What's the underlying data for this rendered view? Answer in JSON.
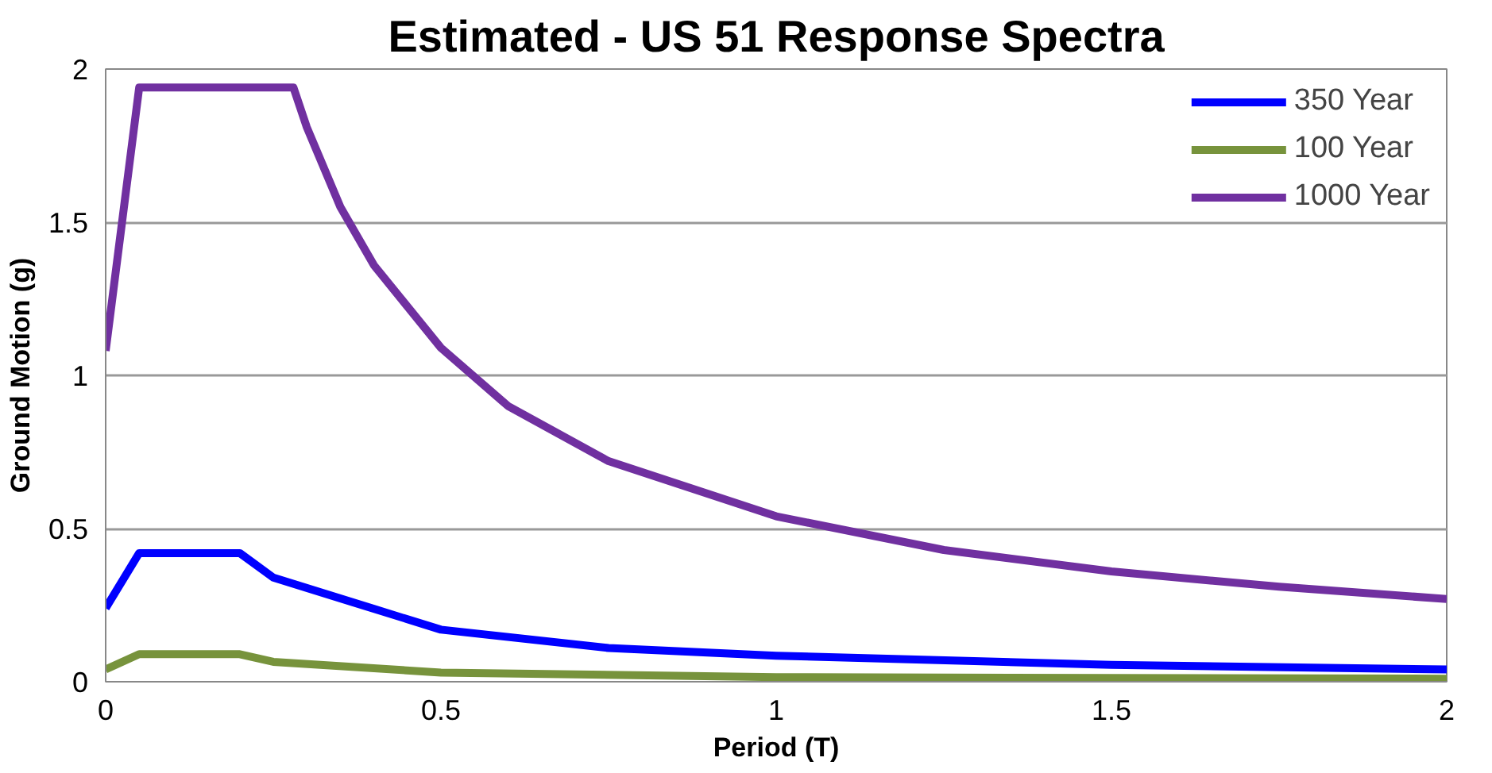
{
  "chart_data": {
    "type": "line",
    "title": "Estimated - US 51 Response Spectra",
    "xlabel": "Period (T)",
    "ylabel": "Ground Motion (g)",
    "xlim": [
      0,
      2
    ],
    "xticks": [
      0,
      0.5,
      1,
      1.5,
      2
    ],
    "ylim": [
      0,
      2
    ],
    "yticks": [
      0,
      0.5,
      1,
      1.5,
      2
    ],
    "grid": "y",
    "legend": "top right",
    "marker": "none",
    "line_style": "solid",
    "series": [
      {
        "name": "350 Year",
        "color": "#0000ff",
        "x": [
          0,
          0.05,
          0.2,
          0.25,
          0.5,
          0.75,
          1,
          1.5,
          2
        ],
        "values": [
          0.24,
          0.42,
          0.42,
          0.34,
          0.17,
          0.11,
          0.085,
          0.055,
          0.04
        ]
      },
      {
        "name": "100 Year",
        "color": "#77933c",
        "x": [
          0,
          0.05,
          0.2,
          0.25,
          0.5,
          1,
          2
        ],
        "values": [
          0.04,
          0.09,
          0.09,
          0.065,
          0.03,
          0.015,
          0.01
        ]
      },
      {
        "name": "1000 Year",
        "color": "#7030a0",
        "x": [
          0,
          0.05,
          0.28,
          0.3,
          0.35,
          0.4,
          0.5,
          0.6,
          0.75,
          1,
          1.25,
          1.5,
          1.75,
          2
        ],
        "values": [
          1.08,
          1.94,
          1.94,
          1.81,
          1.55,
          1.36,
          1.09,
          0.9,
          0.72,
          0.54,
          0.43,
          0.36,
          0.31,
          0.27
        ]
      }
    ]
  }
}
